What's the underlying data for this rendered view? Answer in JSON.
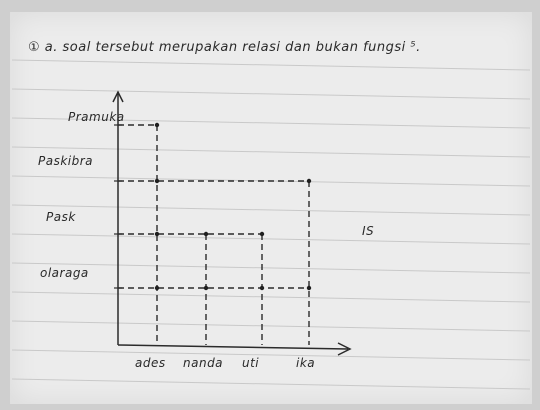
{
  "header": {
    "text": "①  a. soal tersebut merupakan relasi dan bukan fungsi ⁵."
  },
  "side_mark": "IS",
  "chart_data": {
    "type": "scatter",
    "categories_y": [
      "Pramuka",
      "Paskibra",
      "Pask",
      "olaraga"
    ],
    "categories_x": [
      "ades",
      "nanda",
      "uti",
      "ika"
    ],
    "points": [
      {
        "x": "ades",
        "y": "Pramuka"
      },
      {
        "x": "ades",
        "y": "Paskibra"
      },
      {
        "x": "ades",
        "y": "Pask"
      },
      {
        "x": "ades",
        "y": "olaraga"
      },
      {
        "x": "nanda",
        "y": "Pask"
      },
      {
        "x": "nanda",
        "y": "olaraga"
      },
      {
        "x": "uti",
        "y": "Pask"
      },
      {
        "x": "uti",
        "y": "olaraga"
      },
      {
        "x": "ika",
        "y": "Paskibra"
      },
      {
        "x": "ika",
        "y": "olaraga"
      }
    ]
  }
}
